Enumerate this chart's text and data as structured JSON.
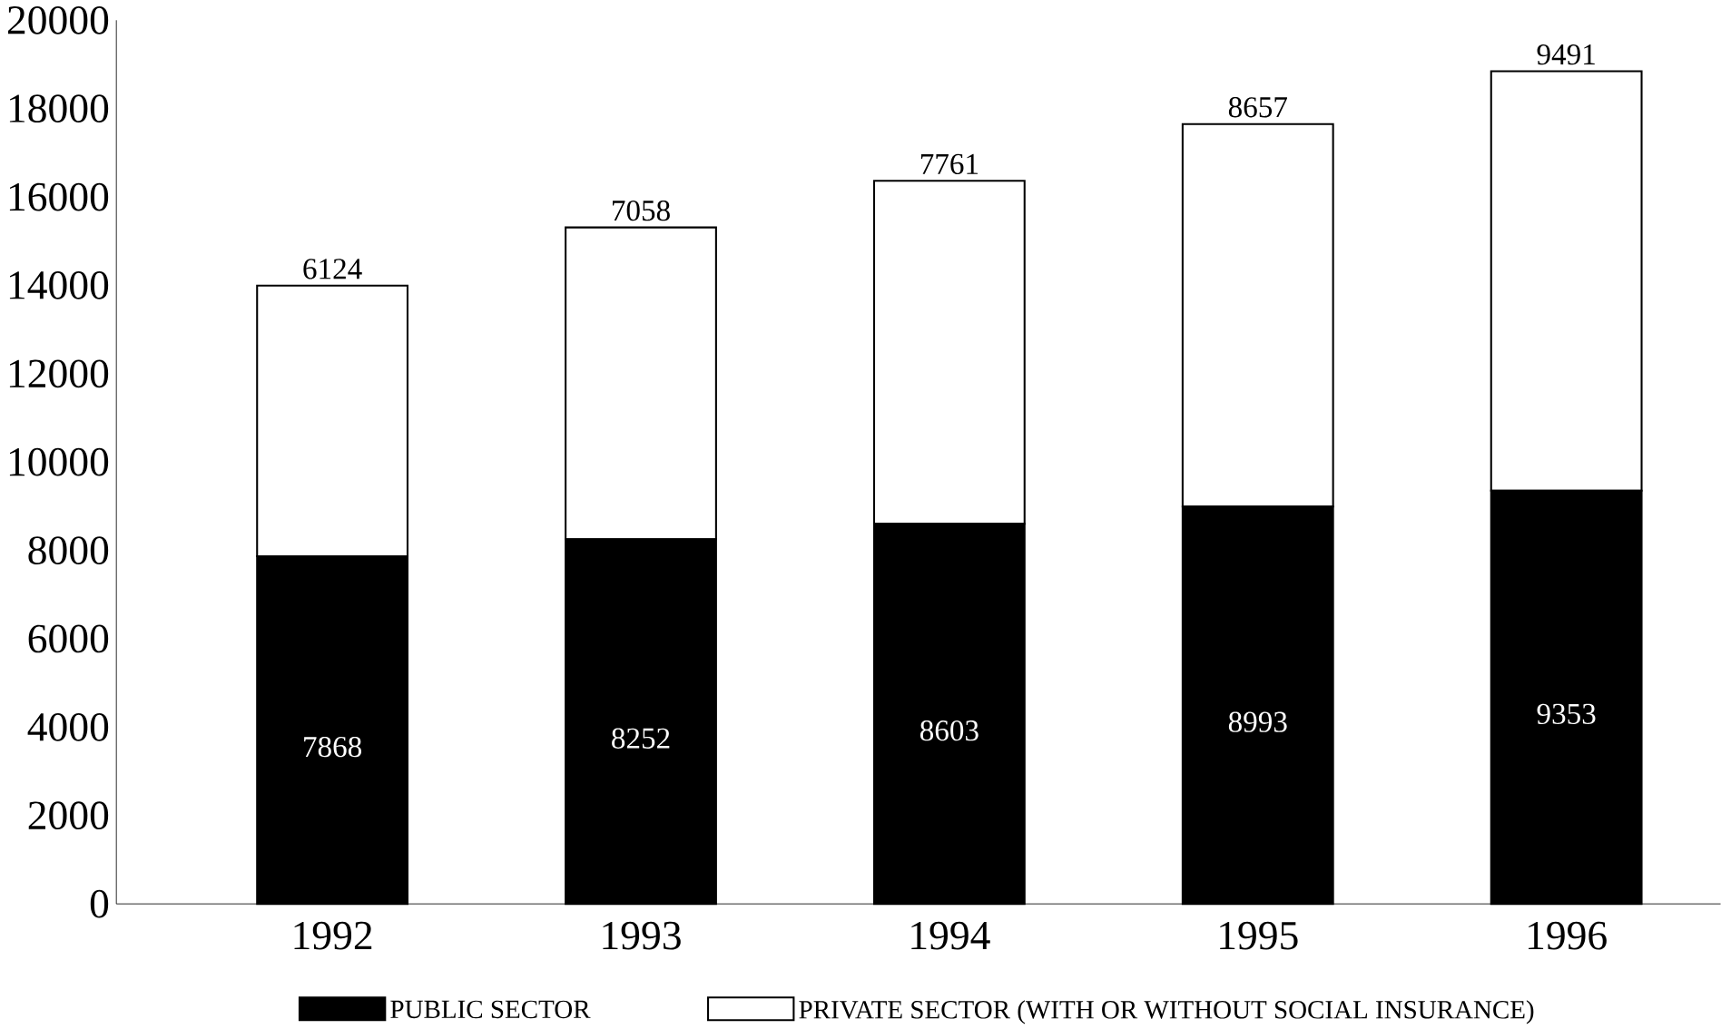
{
  "chart_data": {
    "type": "bar",
    "stacked": true,
    "categories": [
      "1992",
      "1993",
      "1994",
      "1995",
      "1996"
    ],
    "series": [
      {
        "name": "PUBLIC SECTOR",
        "color": "#000000",
        "values": [
          7868,
          8252,
          8603,
          8993,
          9353
        ],
        "value_labels": [
          "7868",
          "8252",
          "8603",
          "8993",
          "9353"
        ]
      },
      {
        "name": "PRIVATE SECTOR (WITH OR WITHOUT SOCIAL INSURANCE)",
        "color": "#ffffff",
        "values": [
          6124,
          7058,
          7761,
          8657,
          9491
        ],
        "value_labels": [
          "6124",
          "7058",
          "7761",
          "8657",
          "9491"
        ]
      }
    ],
    "ylim": [
      0,
      20000
    ],
    "yticks": [
      0,
      2000,
      4000,
      6000,
      8000,
      10000,
      12000,
      14000,
      16000,
      18000,
      20000
    ],
    "legend": "bottom"
  }
}
